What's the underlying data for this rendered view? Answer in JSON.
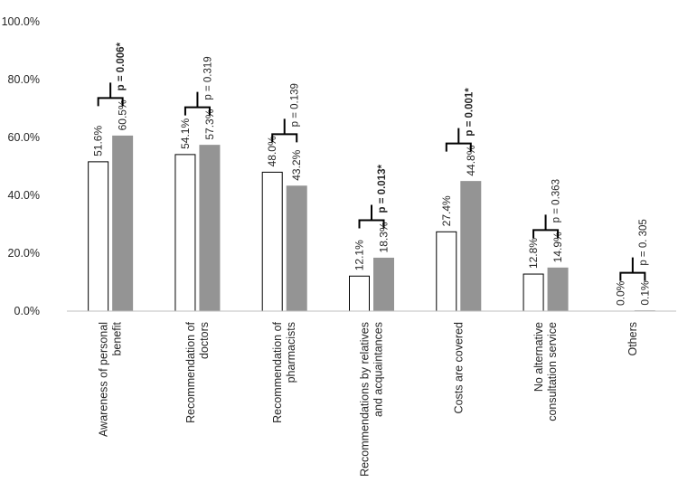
{
  "chart_data": {
    "type": "bar",
    "categories": [
      [
        "Awareness of personal",
        "benefit"
      ],
      [
        "Recommendation of",
        "doctors"
      ],
      [
        "Recommendation of",
        "pharmacists"
      ],
      [
        "Recommendations by relatives",
        "and acquaintances"
      ],
      [
        "Costs are covered"
      ],
      [
        "No alternative",
        "consultation service"
      ],
      [
        "Others"
      ]
    ],
    "series": [
      {
        "values": [
          51.6,
          54.1,
          48.0,
          12.1,
          27.4,
          12.8,
          0.0
        ],
        "labels": [
          "51.6%",
          "54.1%",
          "48.0%",
          "12.1%",
          "27.4%",
          "12.8%",
          "0.0%"
        ],
        "color": "#ffffff",
        "stroke": "#000000"
      },
      {
        "values": [
          60.5,
          57.3,
          43.2,
          18.3,
          44.8,
          14.9,
          0.1
        ],
        "labels": [
          "60.5%",
          "57.3%",
          "43.2%",
          "18.3%",
          "44.8%",
          "14.9%",
          "0.1%"
        ],
        "color": "#949494",
        "stroke": "#949494"
      }
    ],
    "p_values": [
      {
        "text": "p = 0.006*",
        "significant": true
      },
      {
        "text": "p = 0.319",
        "significant": false
      },
      {
        "text": "p = 0.139",
        "significant": false
      },
      {
        "text": "p = 0.013*",
        "significant": true
      },
      {
        "text": "p = 0.001*",
        "significant": true
      },
      {
        "text": "p = 0.363",
        "significant": false
      },
      {
        "text": "p = 0. 305",
        "significant": false
      }
    ],
    "y_ticks": [
      0,
      20,
      40,
      60,
      80,
      100
    ],
    "y_tick_labels": [
      "0.0%",
      "20.0%",
      "40.0%",
      "60.0%",
      "80.0%",
      "100.0%"
    ],
    "ylim": [
      0,
      100
    ],
    "grid": false,
    "legend": "none"
  }
}
